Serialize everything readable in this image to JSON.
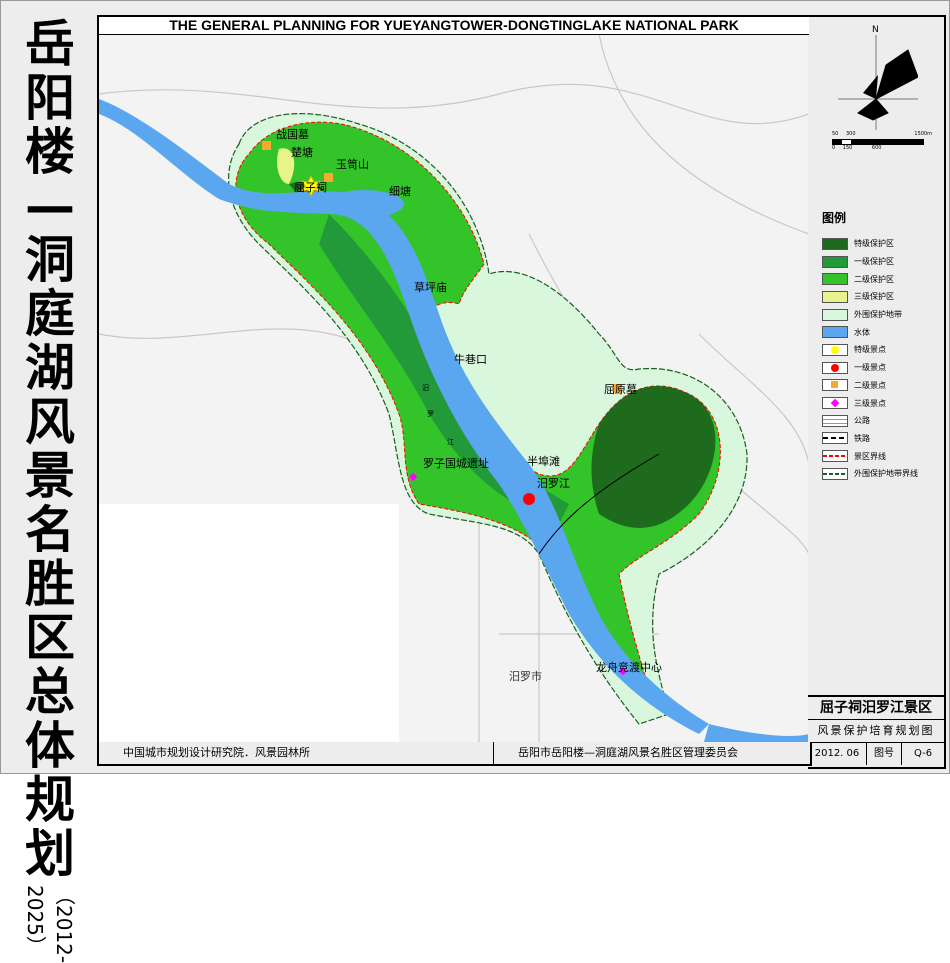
{
  "side_title": {
    "main": "岳阳楼—洞庭湖风景名胜区总体规划",
    "years": "（2012-2025）"
  },
  "map": {
    "title": "THE GENERAL PLANNING FOR YUEYANGTOWER-DONGTINGLAKE NATIONAL PARK",
    "labels": [
      "战国墓",
      "楚塘",
      "玉笥山",
      "屈子祠",
      "细塘",
      "草坪庙",
      "牛巷口",
      "屈原墓",
      "半埠滩",
      "罗子国城遗址",
      "汨罗江",
      "汨罗市",
      "龙舟竞渡中心"
    ],
    "river_chars": [
      "汨",
      "罗",
      "江"
    ]
  },
  "compass": {
    "north": "N"
  },
  "scale": {
    "top_ticks": [
      "50",
      "300",
      "1500m"
    ],
    "bottom_ticks": [
      "0",
      "150",
      "600"
    ]
  },
  "legend": {
    "title": "图例",
    "items": [
      {
        "label": "特级保护区",
        "color": "#1e6b1e",
        "kind": "fill"
      },
      {
        "label": "一级保护区",
        "color": "#229a3a",
        "kind": "fill"
      },
      {
        "label": "二级保护区",
        "color": "#33c42a",
        "kind": "fill"
      },
      {
        "label": "三级保护区",
        "color": "#e8f48a",
        "kind": "fill"
      },
      {
        "label": "外围保护地带",
        "color": "#d8f7dc",
        "kind": "fill"
      },
      {
        "label": "水体",
        "color": "#5aa6ef",
        "kind": "fill"
      },
      {
        "label": "特级景点",
        "color": "#ffff00",
        "kind": "circle"
      },
      {
        "label": "一级景点",
        "color": "#ff0000",
        "kind": "dot"
      },
      {
        "label": "二级景点",
        "color": "#f7a830",
        "kind": "square"
      },
      {
        "label": "三级景点",
        "color": "#ff00ff",
        "kind": "diamond"
      },
      {
        "label": "公路",
        "color": "#999999",
        "kind": "road"
      },
      {
        "label": "铁路",
        "color": "#000000",
        "kind": "rail"
      },
      {
        "label": "景区界线",
        "color": "#ff0000",
        "kind": "dash"
      },
      {
        "label": "外围保护地带界线",
        "color": "#1b5e20",
        "kind": "dash"
      }
    ]
  },
  "title_block": {
    "area": "屈子祠汨罗江景区",
    "drawing": "风景保护培育规划图",
    "date": "2012. 06",
    "no_label": "图号",
    "no": "Q-6"
  },
  "footer": {
    "left": "中国城市规划设计研究院．风景园林所",
    "right": "岳阳市岳阳楼—洞庭湖风景名胜区管理委员会"
  }
}
